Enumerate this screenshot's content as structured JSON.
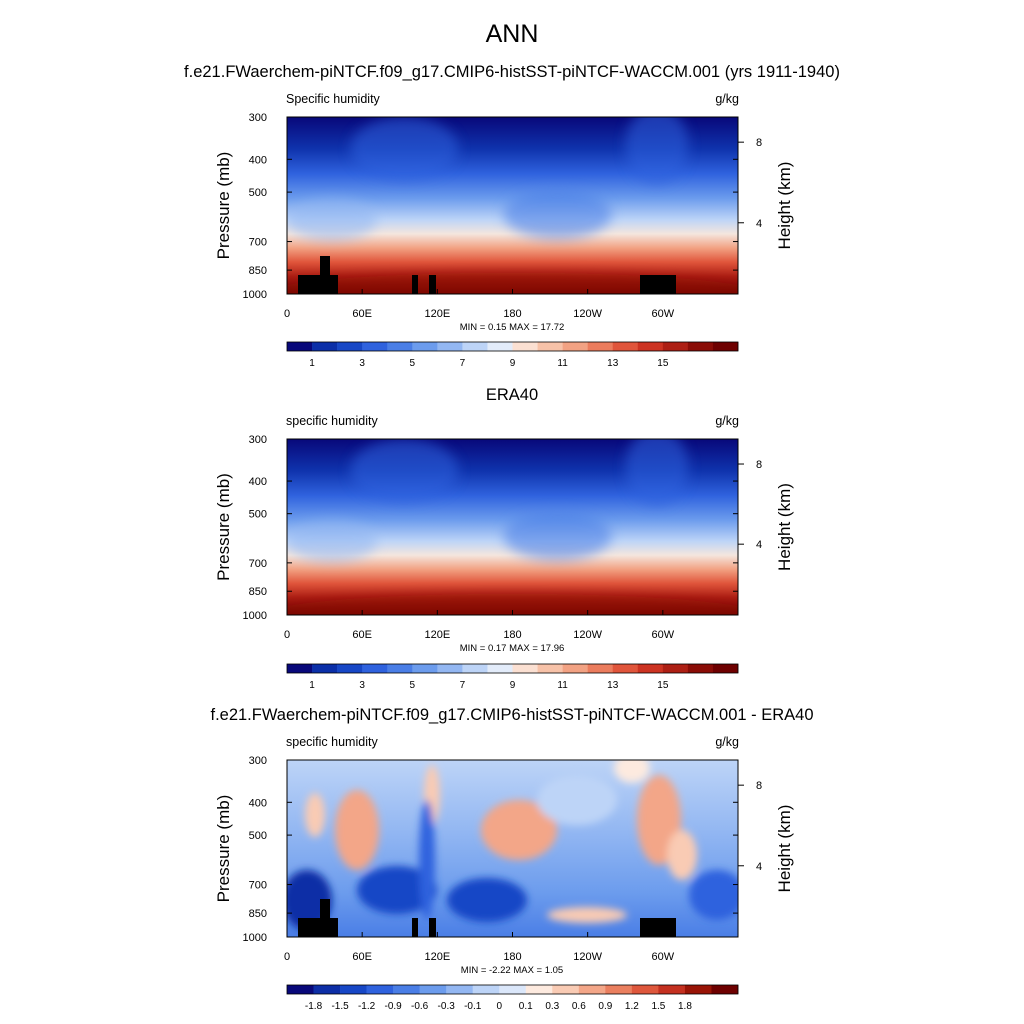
{
  "title": "ANN",
  "case_title": "f.e21.FWaerchem-piNTCF.f09_g17.CMIP6-histSST-piNTCF-WACCM.001 (yrs 1911-1940)",
  "era_title": "ERA40",
  "diff_title": "f.e21.FWaerchem-piNTCF.f09_g17.CMIP6-histSST-piNTCF-WACCM.001 - ERA40",
  "chart_data": [
    {
      "type": "heatmap",
      "panel": "model",
      "left_label": "Specific humidity",
      "right_label": "g/kg",
      "ylabel": "Pressure (mb)",
      "ylabel_right": "Height (km)",
      "y_ticks": [
        "300",
        "400",
        "500",
        "700",
        "850",
        "1000"
      ],
      "y_right_ticks": [
        "8",
        "4"
      ],
      "x_ticks": [
        "0",
        "60E",
        "120E",
        "180",
        "120W",
        "60W"
      ],
      "min_label": "MIN =   0.15  MAX =   17.72",
      "min": 0.15,
      "max": 17.72,
      "colorbar_labels": [
        "1",
        "3",
        "5",
        "7",
        "9",
        "11",
        "13",
        "15"
      ]
    },
    {
      "type": "heatmap",
      "panel": "obs",
      "left_label": "specific humidity",
      "right_label": "g/kg",
      "ylabel": "Pressure (mb)",
      "ylabel_right": "Height (km)",
      "y_ticks": [
        "300",
        "400",
        "500",
        "700",
        "850",
        "1000"
      ],
      "y_right_ticks": [
        "8",
        "4"
      ],
      "x_ticks": [
        "0",
        "60E",
        "120E",
        "180",
        "120W",
        "60W"
      ],
      "min_label": "MIN =   0.17  MAX =   17.96",
      "min": 0.17,
      "max": 17.96,
      "colorbar_labels": [
        "1",
        "3",
        "5",
        "7",
        "9",
        "11",
        "13",
        "15"
      ]
    },
    {
      "type": "heatmap",
      "panel": "difference",
      "left_label": "specific humidity",
      "right_label": "g/kg",
      "ylabel": "Pressure (mb)",
      "ylabel_right": "Height (km)",
      "y_ticks": [
        "300",
        "400",
        "500",
        "700",
        "850",
        "1000"
      ],
      "y_right_ticks": [
        "8",
        "4"
      ],
      "x_ticks": [
        "0",
        "60E",
        "120E",
        "180",
        "120W",
        "60W"
      ],
      "min_label": "MIN =  -2.22  MAX =   1.05",
      "min": -2.22,
      "max": 1.05,
      "colorbar_labels": [
        "-1.8",
        "-1.5",
        "-1.2",
        "-0.9",
        "-0.6",
        "-0.3",
        "-0.1",
        "0",
        "0.1",
        "0.3",
        "0.6",
        "0.9",
        "1.2",
        "1.5",
        "1.8"
      ]
    }
  ],
  "colors": {
    "abs_scale": [
      "#08087a",
      "#0b2fa8",
      "#1747c6",
      "#2f62de",
      "#4a7ee6",
      "#6c9ced",
      "#93b7f2",
      "#bdd4f7",
      "#e3ecfa",
      "#fbe0d2",
      "#f7c2a8",
      "#f2a283",
      "#eb7c5d",
      "#e0553b",
      "#cc3322",
      "#ad1f14",
      "#8a0c06",
      "#6e0000"
    ],
    "diff_scale": [
      "#08087a",
      "#0d2ea6",
      "#1747c6",
      "#2f62de",
      "#4a7ee6",
      "#6c9ced",
      "#93b7f2",
      "#bdd4f7",
      "#dbe7fa",
      "#fdeadf",
      "#f9cbb4",
      "#f3a688",
      "#ea7f5f",
      "#de573c",
      "#c43020",
      "#991406",
      "#6e0000"
    ]
  }
}
